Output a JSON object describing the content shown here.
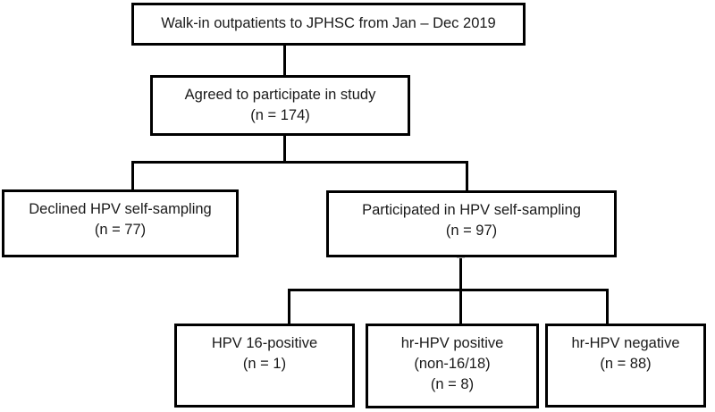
{
  "flowchart": {
    "title_semantic": "HPV self-sampling study recruitment flowchart",
    "colors": {
      "background": "#ffffff",
      "line": "#000000",
      "text": "#1a1a1a",
      "artifact_border": "#bfbfbf",
      "artifact_fill": "#f5f5f5"
    },
    "boxes": {
      "walkin": {
        "lines": [
          "Walk-in outpatients to JPHSC from Jan – Dec 2019"
        ]
      },
      "agreed": {
        "lines": [
          "Agreed to participate in study",
          "(n = 174)"
        ]
      },
      "declined": {
        "lines": [
          "Declined HPV self-sampling",
          "(n = 77)"
        ]
      },
      "participated": {
        "lines": [
          "Participated in HPV self-sampling",
          "(n = 97)"
        ]
      },
      "hpv16_positive": {
        "lines": [
          "HPV 16-positive",
          "(n = 1)"
        ]
      },
      "hr_hpv_positive": {
        "lines": [
          "hr-HPV positive",
          "(non-16/18)",
          "(n = 8)"
        ]
      },
      "hr_hpv_negative": {
        "lines": [
          "hr-HPV negative",
          "(n = 88)"
        ]
      }
    }
  }
}
